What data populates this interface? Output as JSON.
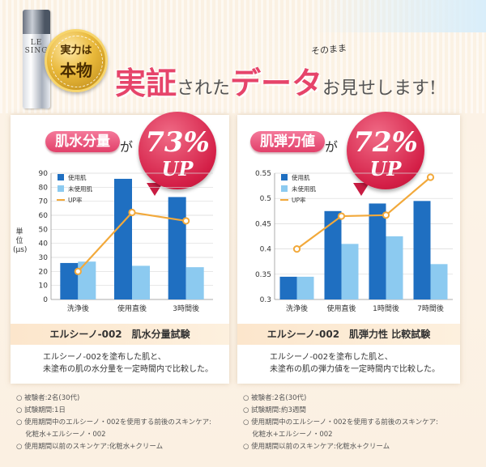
{
  "product": {
    "label": "LE SING"
  },
  "medal": {
    "top": "実力は",
    "bottom": "本物"
  },
  "headline": {
    "part1": "実証",
    "part2": "された",
    "part3": "データ",
    "part4": "お見せします!",
    "note": "そのまま"
  },
  "colors": {
    "used": "#1f6fc1",
    "unused": "#8ccaf0",
    "up": "#f2a93b",
    "accent": "#e2406a"
  },
  "left": {
    "pill": "肌水分量",
    "ga": "が",
    "badge_pct": "73%",
    "badge_up": "UP",
    "caption": "エルシーノ-002　肌水分量試験",
    "desc1": "エルシーノ-002を塗布した肌と、",
    "desc2": "未塗布の肌の水分量を一定時間内で比較した。",
    "unit": [
      "単",
      "位",
      "(μs)"
    ],
    "notes": [
      "○ 被験者:2名(30代)",
      "○ 試験期間:1日",
      "○ 使用期間中のエルシーノ・002を使用する前後のスキンケア:",
      "　 化粧水+エルシーノ・002",
      "○ 使用期間以前のスキンケア:化粧水+クリーム"
    ]
  },
  "right": {
    "pill": "肌弾力値",
    "ga": "が",
    "badge_pct": "72%",
    "badge_up": "UP",
    "caption": "エルシーノ-002　肌弾力性 比較試験",
    "desc1": "エルシーノ-002を塗布した肌と、",
    "desc2": "未塗布の肌の弾力値を一定時間内で比較した。",
    "notes": [
      "○ 被験者:2名(30代)",
      "○ 試験期間:約3週間",
      "○ 使用期間中のエルシーノ・002を使用する前後のスキンケア:",
      "　 化粧水+エルシーノ・002",
      "○ 使用期間以前のスキンケア:化粧水+クリーム"
    ]
  },
  "chart_data": [
    {
      "type": "bar",
      "categories": [
        "洗浄後",
        "使用直後",
        "3時間後"
      ],
      "series": [
        {
          "name": "使用肌",
          "values": [
            26,
            86,
            73
          ]
        },
        {
          "name": "未使用肌",
          "values": [
            27,
            24,
            23
          ]
        },
        {
          "name": "UP率",
          "kind": "line",
          "values": [
            20,
            62,
            56
          ]
        }
      ],
      "yticks": [
        "90",
        "80",
        "70",
        "60",
        "50",
        "40",
        "30",
        "20",
        "10",
        "0"
      ],
      "ylim": [
        0,
        90
      ],
      "legend": "top-left",
      "grid": true
    },
    {
      "type": "bar",
      "categories": [
        "洗浄後",
        "使用直後",
        "1時間後",
        "7時間後"
      ],
      "series": [
        {
          "name": "使用肌",
          "values": [
            0.345,
            0.475,
            0.49,
            0.495
          ]
        },
        {
          "name": "未使用肌",
          "values": [
            0.345,
            0.41,
            0.425,
            0.37
          ]
        },
        {
          "name": "UP率",
          "kind": "line",
          "values": [
            0.4,
            0.465,
            0.467,
            0.542
          ]
        }
      ],
      "yticks": [
        "0.55",
        "0.5",
        "0.45",
        "0.4",
        "0.35",
        "0.3"
      ],
      "ylim": [
        0.3,
        0.55
      ],
      "legend": "top-left",
      "grid": true
    }
  ]
}
